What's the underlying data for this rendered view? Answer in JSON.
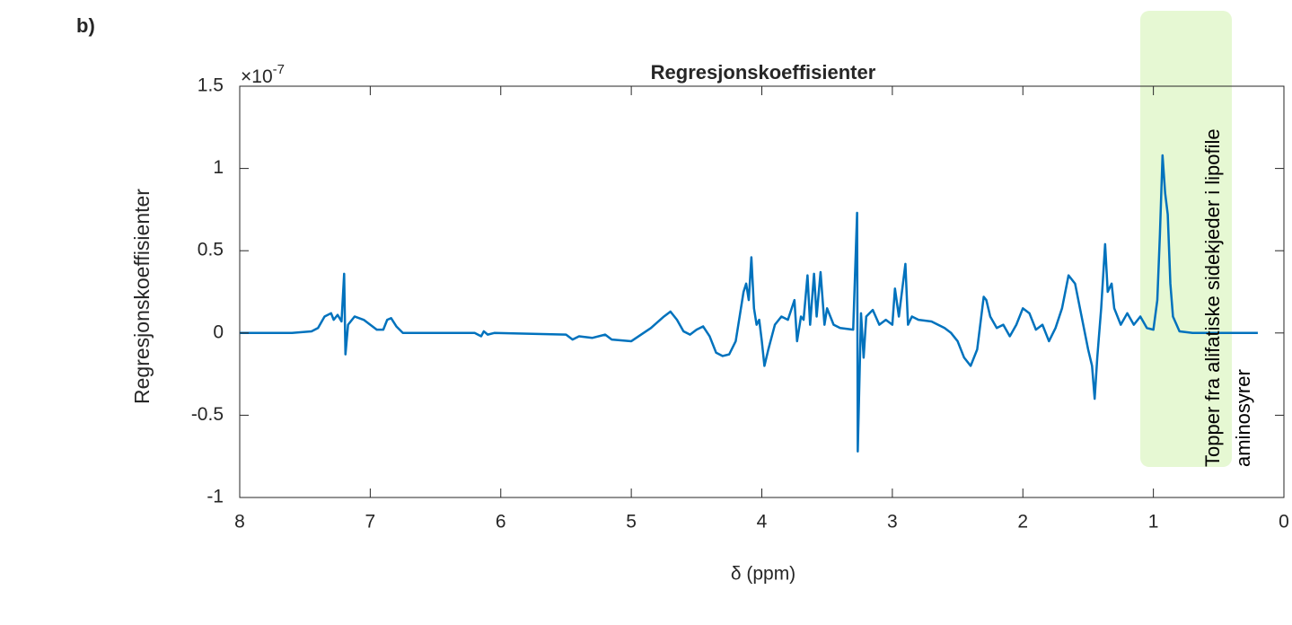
{
  "panel_label": "b)",
  "chart_data": {
    "type": "line",
    "title": "Regresjonskoeffisienter",
    "x_label": "δ (ppm)",
    "y_label": "Regresjonskoeffisienter",
    "y_multiplier": "×10",
    "y_multiplier_exponent": "-7",
    "annotation_lines": [
      "Topper fra alifatiske sidekjeder i lipofile",
      "aminosyrer"
    ],
    "xlim": [
      8,
      0
    ],
    "ylim": [
      -1,
      1.5
    ],
    "xticks": [
      8,
      7,
      6,
      5,
      4,
      3,
      2,
      1,
      0
    ],
    "yticks": [
      1.5,
      1,
      0.5,
      0,
      -0.5,
      -1
    ],
    "grid": false,
    "series": [
      {
        "color": "#0072bd",
        "x": [
          8.0,
          7.6,
          7.45,
          7.4,
          7.35,
          7.3,
          7.28,
          7.25,
          7.22,
          7.2,
          7.19,
          7.17,
          7.12,
          7.05,
          7.0,
          6.95,
          6.9,
          6.87,
          6.84,
          6.8,
          6.75,
          6.5,
          6.2,
          6.15,
          6.13,
          6.1,
          6.05,
          5.5,
          5.45,
          5.4,
          5.3,
          5.2,
          5.15,
          5.0,
          4.85,
          4.75,
          4.7,
          4.65,
          4.6,
          4.55,
          4.5,
          4.45,
          4.4,
          4.35,
          4.3,
          4.25,
          4.2,
          4.17,
          4.14,
          4.12,
          4.1,
          4.08,
          4.06,
          4.04,
          4.02,
          4.0,
          3.98,
          3.95,
          3.9,
          3.85,
          3.8,
          3.75,
          3.73,
          3.7,
          3.68,
          3.65,
          3.63,
          3.6,
          3.58,
          3.55,
          3.52,
          3.5,
          3.45,
          3.4,
          3.3,
          3.27,
          3.265,
          3.24,
          3.22,
          3.2,
          3.15,
          3.1,
          3.05,
          3.0,
          2.98,
          2.95,
          2.9,
          2.88,
          2.85,
          2.8,
          2.7,
          2.6,
          2.55,
          2.5,
          2.45,
          2.4,
          2.35,
          2.3,
          2.28,
          2.25,
          2.2,
          2.15,
          2.1,
          2.05,
          2.0,
          1.95,
          1.9,
          1.85,
          1.8,
          1.75,
          1.7,
          1.65,
          1.6,
          1.55,
          1.5,
          1.47,
          1.45,
          1.43,
          1.4,
          1.37,
          1.35,
          1.32,
          1.3,
          1.25,
          1.2,
          1.15,
          1.1,
          1.05,
          1.0,
          0.97,
          0.95,
          0.93,
          0.91,
          0.89,
          0.87,
          0.85,
          0.8,
          0.7,
          0.2
        ],
        "values": [
          0,
          0,
          0.01,
          0.03,
          0.1,
          0.12,
          0.08,
          0.11,
          0.07,
          0.36,
          -0.13,
          0.05,
          0.1,
          0.08,
          0.05,
          0.02,
          0.02,
          0.08,
          0.09,
          0.04,
          0,
          0,
          0,
          -0.02,
          0.01,
          -0.01,
          0,
          -0.01,
          -0.04,
          -0.02,
          -0.03,
          -0.01,
          -0.04,
          -0.05,
          0.03,
          0.1,
          0.13,
          0.08,
          0.01,
          -0.01,
          0.02,
          0.04,
          -0.02,
          -0.12,
          -0.14,
          -0.13,
          -0.05,
          0.1,
          0.25,
          0.3,
          0.2,
          0.46,
          0.15,
          0.05,
          0.08,
          -0.05,
          -0.2,
          -0.1,
          0.05,
          0.1,
          0.08,
          0.2,
          -0.05,
          0.1,
          0.08,
          0.35,
          0.05,
          0.36,
          0.1,
          0.37,
          0.05,
          0.15,
          0.05,
          0.03,
          0.02,
          0.73,
          -0.72,
          0.12,
          -0.15,
          0.1,
          0.14,
          0.05,
          0.08,
          0.05,
          0.27,
          0.1,
          0.42,
          0.05,
          0.1,
          0.08,
          0.07,
          0.03,
          0,
          -0.05,
          -0.15,
          -0.2,
          -0.1,
          0.22,
          0.2,
          0.1,
          0.03,
          0.05,
          -0.02,
          0.05,
          0.15,
          0.12,
          0.02,
          0.05,
          -0.05,
          0.03,
          0.15,
          0.35,
          0.3,
          0.1,
          -0.1,
          -0.2,
          -0.4,
          -0.15,
          0.15,
          0.54,
          0.25,
          0.3,
          0.15,
          0.05,
          0.12,
          0.05,
          0.1,
          0.03,
          0.02,
          0.2,
          0.6,
          1.08,
          0.85,
          0.72,
          0.3,
          0.1,
          0.01,
          0,
          0
        ]
      }
    ]
  }
}
